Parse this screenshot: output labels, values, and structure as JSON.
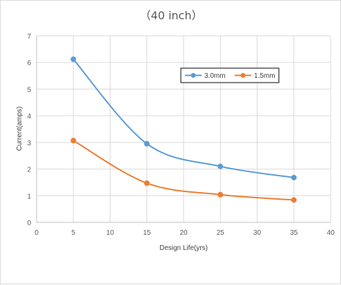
{
  "chart_data": {
    "type": "line",
    "title": "（40  inch）",
    "xlabel": "Design  Life(yrs)",
    "ylabel": "Current(amps)",
    "xlim": [
      0,
      40
    ],
    "ylim": [
      0,
      7
    ],
    "xticks": [
      "0",
      "5",
      "10",
      "15",
      "20",
      "25",
      "30",
      "35",
      "40"
    ],
    "yticks": [
      "0",
      "1",
      "2",
      "3",
      "4",
      "5",
      "6",
      "7"
    ],
    "x": [
      5,
      15,
      25,
      35
    ],
    "series": [
      {
        "name": "3.0mm",
        "values": [
          6.12,
          2.95,
          2.1,
          1.68
        ],
        "color": "#5b9bd5"
      },
      {
        "name": "1.5mm",
        "values": [
          3.07,
          1.47,
          1.04,
          0.84
        ],
        "color": "#ed7d31"
      }
    ],
    "grid": "vertical-and-horizontal",
    "legend_position": "top-right",
    "smooth": true
  }
}
